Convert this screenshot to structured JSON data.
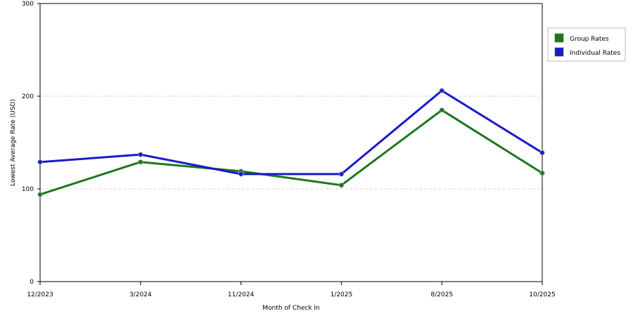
{
  "chart_data": {
    "type": "line",
    "title": "",
    "xlabel": "Month of Check In",
    "ylabel": "Lowest Average Rate (USD)",
    "categories": [
      "12/2023",
      "3/2024",
      "11/2024",
      "1/2025",
      "8/2025",
      "10/2025"
    ],
    "ylim": [
      0,
      300
    ],
    "yticks": [
      0,
      100,
      200,
      300
    ],
    "grid": true,
    "legend_position": "right",
    "series": [
      {
        "name": "Group Rates",
        "color": "#1a7a1a",
        "values": [
          94,
          129,
          119,
          104,
          185,
          117
        ]
      },
      {
        "name": "Individual Rates",
        "color": "#1a1acc",
        "values": [
          129,
          137,
          116,
          116,
          206,
          139
        ]
      }
    ]
  }
}
